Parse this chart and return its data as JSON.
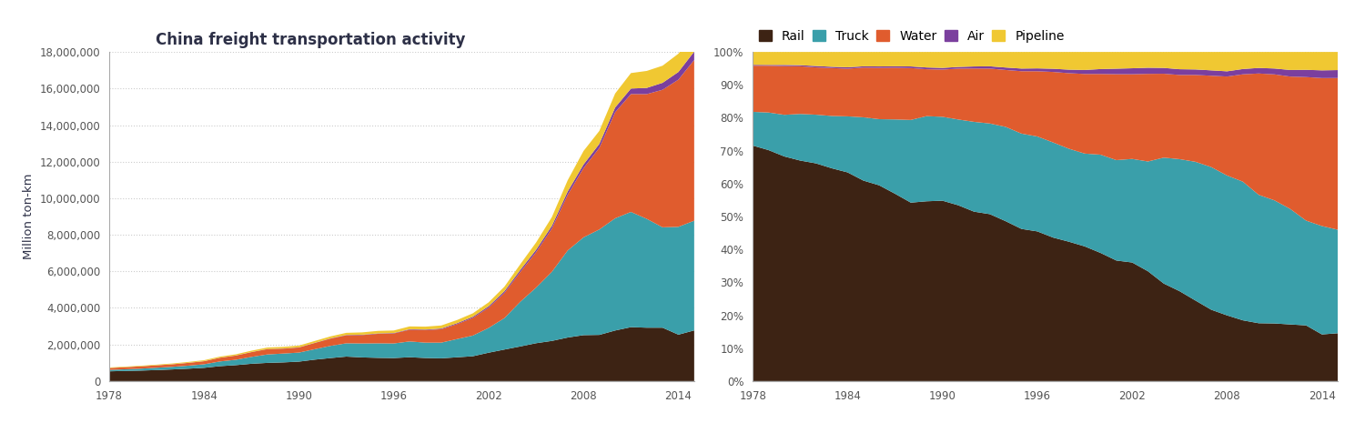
{
  "years": [
    1978,
    1979,
    1980,
    1981,
    1982,
    1983,
    1984,
    1985,
    1986,
    1987,
    1988,
    1989,
    1990,
    1991,
    1992,
    1993,
    1994,
    1995,
    1996,
    1997,
    1998,
    1999,
    2000,
    2001,
    2002,
    2003,
    2004,
    2005,
    2006,
    2007,
    2008,
    2009,
    2010,
    2011,
    2012,
    2013,
    2014,
    2015
  ],
  "rail": [
    530900,
    553000,
    571700,
    601100,
    635100,
    675000,
    722600,
    813900,
    868800,
    944900,
    993500,
    1019800,
    1062300,
    1170600,
    1257200,
    1337200,
    1292600,
    1267900,
    1257400,
    1302600,
    1259900,
    1243300,
    1299100,
    1356600,
    1551000,
    1722800,
    1891800,
    2069100,
    2195200,
    2380500,
    2510600,
    2524700,
    2764000,
    2948400,
    2918100,
    2917360,
    2536980,
    2769830
  ],
  "truck": [
    76000,
    90000,
    106000,
    127000,
    142000,
    166000,
    194000,
    256900,
    293600,
    374800,
    460400,
    483000,
    494000,
    571100,
    666600,
    726600,
    762700,
    794600,
    797600,
    863600,
    840700,
    857100,
    996300,
    1130200,
    1354600,
    1723300,
    2444400,
    3040000,
    3781400,
    4761300,
    5348500,
    5765500,
    6136600,
    6301200,
    5952800,
    5491860,
    5897660,
    5999790
  ],
  "water": [
    104000,
    112000,
    124000,
    130000,
    138000,
    152000,
    165000,
    202000,
    228000,
    261000,
    289000,
    266000,
    278000,
    339000,
    396000,
    440000,
    460000,
    520000,
    548000,
    640000,
    683000,
    735000,
    818000,
    967000,
    1108000,
    1375000,
    1628000,
    1939000,
    2367000,
    3048000,
    3784000,
    4462000,
    5798000,
    6449000,
    6823000,
    7523000,
    8050000,
    8790000
  ],
  "air": [
    2000,
    2000,
    3000,
    3000,
    4000,
    4000,
    5000,
    5000,
    6000,
    7000,
    9000,
    10000,
    10000,
    11000,
    15000,
    18000,
    20000,
    22000,
    24000,
    29000,
    32000,
    37000,
    50000,
    62000,
    78000,
    96000,
    113000,
    132000,
    150000,
    180000,
    200000,
    220000,
    265000,
    300000,
    340000,
    380000,
    420000,
    460000
  ],
  "pipeline": [
    29000,
    31000,
    33000,
    36000,
    41000,
    47000,
    53000,
    58300,
    64300,
    72300,
    80600,
    88000,
    93900,
    99700,
    107700,
    115100,
    125800,
    138400,
    138000,
    152500,
    160000,
    166300,
    173300,
    188300,
    213400,
    247800,
    309700,
    397500,
    476600,
    613600,
    739400,
    709500,
    764000,
    847100,
    929100,
    936000,
    1000000,
    1050000
  ],
  "colors": {
    "rail": "#3d2314",
    "truck": "#3a9faa",
    "water": "#e05c2e",
    "air": "#7b3f9e",
    "pipeline": "#f0c832"
  },
  "title": "China freight transportation activity",
  "ylabel": "Million ton-km",
  "ylim_max": 18000000,
  "yticks": [
    0,
    2000000,
    4000000,
    6000000,
    8000000,
    10000000,
    12000000,
    14000000,
    16000000,
    18000000
  ],
  "xticks": [
    1978,
    1984,
    1990,
    1996,
    2002,
    2008,
    2014
  ],
  "legend_labels": [
    "Rail",
    "Truck",
    "Water",
    "Air",
    "Pipeline"
  ],
  "background_color": "#ffffff",
  "title_color": "#2d3047",
  "tick_color": "#555555",
  "grid_color": "#cccccc",
  "spine_color": "#aaaaaa"
}
